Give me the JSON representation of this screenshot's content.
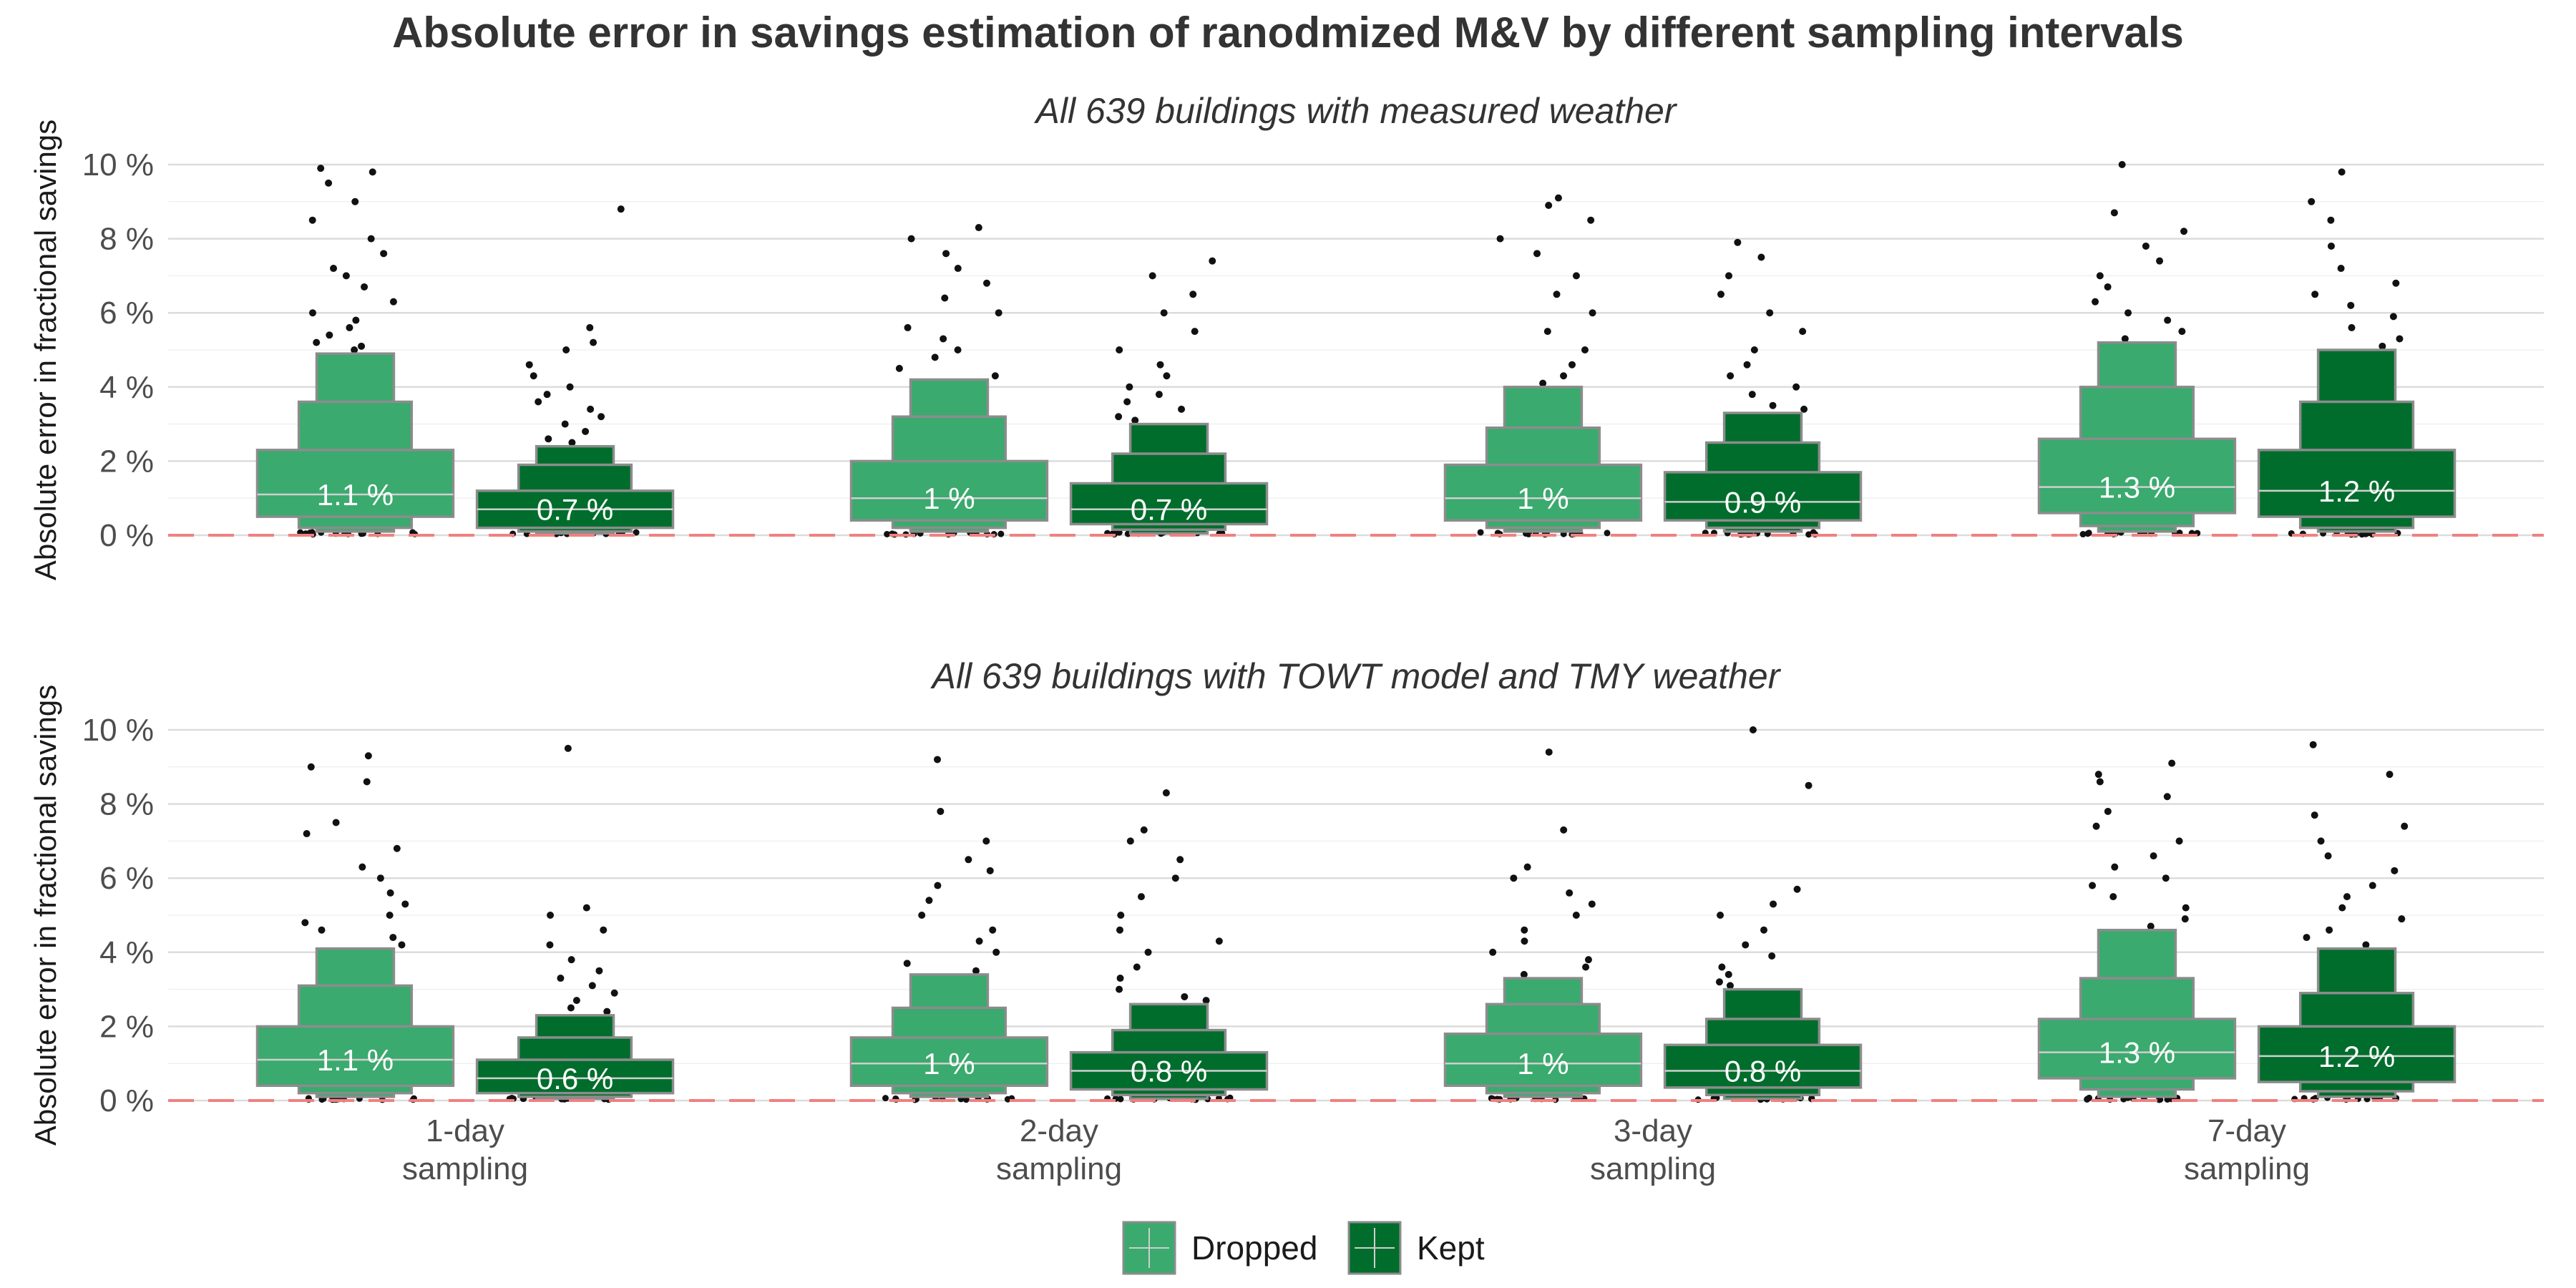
{
  "chart_data": {
    "type": "letter-value boxplot",
    "title": "Absolute error in savings estimation of ranodmized M&V by different sampling intervals",
    "ylabel": "Absolute error in fractional savings",
    "ylim": [
      0,
      10
    ],
    "yticks": [
      "0 %",
      "2 %",
      "4 %",
      "6 %",
      "8 %",
      "10 %"
    ],
    "reference_line": {
      "y": 0,
      "style": "dashed",
      "color": "#f08080"
    },
    "categories": [
      {
        "line1": "1-day",
        "line2": "sampling"
      },
      {
        "line1": "2-day",
        "line2": "sampling"
      },
      {
        "line1": "3-day",
        "line2": "sampling"
      },
      {
        "line1": "7-day",
        "line2": "sampling"
      }
    ],
    "legend": {
      "position": "bottom",
      "entries": [
        {
          "name": "Dropped",
          "color": "#3aaa6e"
        },
        {
          "name": "Kept",
          "color": "#006d2c"
        }
      ]
    },
    "panels": [
      {
        "subtitle": "All 639 buildings with measured weather",
        "groups": [
          [
            {
              "series": "Dropped",
              "median": 1.1,
              "label": "1.1 %",
              "boxes": [
                [
                  0.5,
                  2.3
                ],
                [
                  0.2,
                  3.6
                ],
                [
                  0.1,
                  4.9
                ]
              ],
              "outliers": [
                5.0,
                5.1,
                5.2,
                5.4,
                5.6,
                5.8,
                6.0,
                6.3,
                6.7,
                7.0,
                7.2,
                7.6,
                8.0,
                8.5,
                9.0,
                9.5,
                9.8,
                9.9
              ]
            },
            {
              "series": "Kept",
              "median": 0.7,
              "label": "0.7 %",
              "boxes": [
                [
                  0.2,
                  1.2
                ],
                [
                  0.1,
                  1.9
                ],
                [
                  0.05,
                  2.4
                ]
              ],
              "outliers": [
                2.5,
                2.6,
                2.8,
                3.0,
                3.2,
                3.4,
                3.6,
                3.8,
                4.0,
                4.3,
                4.6,
                5.0,
                5.2,
                5.6,
                8.8
              ]
            }
          ],
          [
            {
              "series": "Dropped",
              "median": 1.0,
              "label": "1 %",
              "boxes": [
                [
                  0.4,
                  2.0
                ],
                [
                  0.2,
                  3.2
                ],
                [
                  0.1,
                  4.2
                ]
              ],
              "outliers": [
                4.3,
                4.5,
                4.8,
                5.0,
                5.3,
                5.6,
                6.0,
                6.4,
                6.8,
                7.2,
                7.6,
                8.0,
                8.3
              ]
            },
            {
              "series": "Kept",
              "median": 0.7,
              "label": "0.7 %",
              "boxes": [
                [
                  0.3,
                  1.4
                ],
                [
                  0.15,
                  2.2
                ],
                [
                  0.05,
                  3.0
                ]
              ],
              "outliers": [
                3.1,
                3.2,
                3.4,
                3.6,
                3.8,
                4.0,
                4.3,
                4.6,
                5.0,
                5.5,
                6.0,
                6.5,
                7.0,
                7.4
              ]
            }
          ],
          [
            {
              "series": "Dropped",
              "median": 1.0,
              "label": "1 %",
              "boxes": [
                [
                  0.4,
                  1.9
                ],
                [
                  0.2,
                  2.9
                ],
                [
                  0.1,
                  4.0
                ]
              ],
              "outliers": [
                4.1,
                4.3,
                4.6,
                5.0,
                5.5,
                6.0,
                6.5,
                7.0,
                7.6,
                8.0,
                8.5,
                8.9,
                9.1
              ]
            },
            {
              "series": "Kept",
              "median": 0.9,
              "label": "0.9 %",
              "boxes": [
                [
                  0.4,
                  1.7
                ],
                [
                  0.2,
                  2.5
                ],
                [
                  0.1,
                  3.3
                ]
              ],
              "outliers": [
                3.4,
                3.5,
                3.8,
                4.0,
                4.3,
                4.6,
                5.0,
                5.5,
                6.0,
                6.5,
                7.0,
                7.5,
                7.9
              ]
            }
          ],
          [
            {
              "series": "Dropped",
              "median": 1.3,
              "label": "1.3 %",
              "boxes": [
                [
                  0.6,
                  2.6
                ],
                [
                  0.25,
                  4.0
                ],
                [
                  0.1,
                  5.2
                ]
              ],
              "outliers": [
                5.3,
                5.5,
                5.8,
                6.0,
                6.3,
                6.7,
                7.0,
                7.4,
                7.8,
                8.2,
                8.7,
                10.0
              ]
            },
            {
              "series": "Kept",
              "median": 1.2,
              "label": "1.2 %",
              "boxes": [
                [
                  0.5,
                  2.3
                ],
                [
                  0.2,
                  3.6
                ],
                [
                  0.1,
                  5.0
                ]
              ],
              "outliers": [
                5.1,
                5.3,
                5.6,
                5.9,
                6.2,
                6.5,
                6.8,
                7.2,
                7.8,
                8.5,
                9.0,
                9.8
              ]
            }
          ]
        ]
      },
      {
        "subtitle": "All 639 buildings with TOWT model and TMY weather",
        "groups": [
          [
            {
              "series": "Dropped",
              "median": 1.1,
              "label": "1.1 %",
              "boxes": [
                [
                  0.4,
                  2.0
                ],
                [
                  0.2,
                  3.1
                ],
                [
                  0.1,
                  4.1
                ]
              ],
              "outliers": [
                4.2,
                4.4,
                4.6,
                4.8,
                5.0,
                5.3,
                5.6,
                6.0,
                6.3,
                6.8,
                7.2,
                7.5,
                8.6,
                9.0,
                9.3
              ]
            },
            {
              "series": "Kept",
              "median": 0.6,
              "label": "0.6 %",
              "boxes": [
                [
                  0.2,
                  1.1
                ],
                [
                  0.1,
                  1.7
                ],
                [
                  0.05,
                  2.3
                ]
              ],
              "outliers": [
                2.4,
                2.5,
                2.7,
                2.9,
                3.1,
                3.3,
                3.5,
                3.8,
                4.2,
                4.6,
                5.0,
                5.2,
                9.5
              ]
            }
          ],
          [
            {
              "series": "Dropped",
              "median": 1.0,
              "label": "1 %",
              "boxes": [
                [
                  0.4,
                  1.7
                ],
                [
                  0.2,
                  2.5
                ],
                [
                  0.1,
                  3.4
                ]
              ],
              "outliers": [
                3.5,
                3.7,
                4.0,
                4.3,
                4.6,
                5.0,
                5.4,
                5.8,
                6.2,
                6.5,
                7.0,
                7.8,
                9.2
              ]
            },
            {
              "series": "Kept",
              "median": 0.8,
              "label": "0.8 %",
              "boxes": [
                [
                  0.3,
                  1.3
                ],
                [
                  0.15,
                  1.9
                ],
                [
                  0.05,
                  2.6
                ]
              ],
              "outliers": [
                2.7,
                2.8,
                3.0,
                3.3,
                3.6,
                4.0,
                4.3,
                4.6,
                5.0,
                5.5,
                6.0,
                6.5,
                7.0,
                7.3,
                8.3
              ]
            }
          ],
          [
            {
              "series": "Dropped",
              "median": 1.0,
              "label": "1 %",
              "boxes": [
                [
                  0.4,
                  1.8
                ],
                [
                  0.2,
                  2.6
                ],
                [
                  0.1,
                  3.3
                ]
              ],
              "outliers": [
                3.4,
                3.6,
                3.8,
                4.0,
                4.3,
                4.6,
                5.0,
                5.3,
                5.6,
                6.0,
                6.3,
                7.3,
                9.4
              ]
            },
            {
              "series": "Kept",
              "median": 0.8,
              "label": "0.8 %",
              "boxes": [
                [
                  0.35,
                  1.5
                ],
                [
                  0.15,
                  2.2
                ],
                [
                  0.05,
                  3.0
                ]
              ],
              "outliers": [
                3.1,
                3.2,
                3.4,
                3.6,
                3.9,
                4.2,
                4.6,
                5.0,
                5.3,
                5.7,
                8.5,
                10.0
              ]
            }
          ],
          [
            {
              "series": "Dropped",
              "median": 1.3,
              "label": "1.3 %",
              "boxes": [
                [
                  0.6,
                  2.2
                ],
                [
                  0.3,
                  3.3
                ],
                [
                  0.1,
                  4.6
                ]
              ],
              "outliers": [
                4.7,
                4.9,
                5.2,
                5.5,
                5.8,
                6.0,
                6.3,
                6.6,
                7.0,
                7.4,
                7.8,
                8.2,
                8.6,
                8.8,
                9.1
              ]
            },
            {
              "series": "Kept",
              "median": 1.2,
              "label": "1.2 %",
              "boxes": [
                [
                  0.5,
                  2.0
                ],
                [
                  0.25,
                  2.9
                ],
                [
                  0.1,
                  4.1
                ]
              ],
              "outliers": [
                4.2,
                4.4,
                4.6,
                4.9,
                5.2,
                5.5,
                5.8,
                6.2,
                6.6,
                7.0,
                7.4,
                7.7,
                8.8,
                9.6
              ]
            }
          ]
        ]
      }
    ]
  }
}
